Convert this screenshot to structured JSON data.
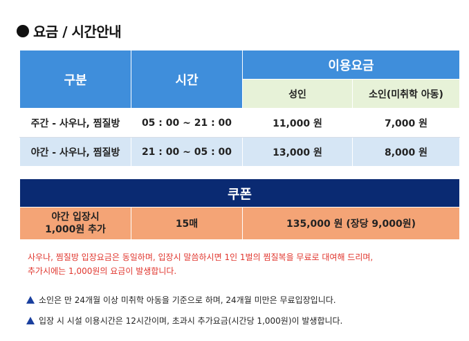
{
  "title": "요금 / 시간안내",
  "price_table": {
    "col_category": "구분",
    "col_time": "시간",
    "col_fee": "이용요금",
    "col_adult": "성인",
    "col_child": "소인(미취학 아동)",
    "rows": [
      {
        "category": "주간 - 사우나, 찜질방",
        "time": "05 : 00 ~ 21 : 00",
        "adult": "11,000 원",
        "child": "7,000 원"
      },
      {
        "category": "야간 - 사우나, 찜질방",
        "time": "21 : 00 ~ 05 : 00",
        "adult": "13,000 원",
        "child": "8,000 원"
      }
    ]
  },
  "coupon": {
    "header": "쿠폰",
    "label_line1": "야간 입장시",
    "label_line2": "1,000원 추가",
    "count": "15매",
    "price": "135,000 원 (장당 9,000원)"
  },
  "notice_red_line1": "사우나, 찜질방 입장요금은 동일하며, 입장시 말씀하시면 1인 1벌의 찜질복을 무료로 대여해 드리며,",
  "notice_red_line2": "추가시에는 1,000원의 요금이 발생합니다.",
  "notes": [
    "소인은 만 24개월 이상 미취학 아동을 기준으로 하며, 24개월 미만은 무료입장입니다.",
    "입장 시 시설 이용시간은 12시간이며, 초과시 추가요금(시간당 1,000원)이 발생합니다."
  ],
  "colors": {
    "header_blue": "#3f8edb",
    "header_green": "#e7f2d8",
    "row_light": "#d6e6f5",
    "coupon_navy": "#0a2a72",
    "coupon_orange": "#f4a476",
    "notice_red": "#e0342c",
    "triangle_blue": "#1a3f9e"
  }
}
